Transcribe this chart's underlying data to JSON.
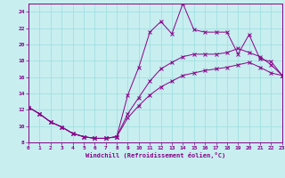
{
  "xlabel": "Windchill (Refroidissement éolien,°C)",
  "bg_color": "#c8eef0",
  "line_color": "#880088",
  "grid_color": "#99dddd",
  "ylim": [
    8,
    25
  ],
  "xlim": [
    0,
    23
  ],
  "yticks": [
    8,
    10,
    12,
    14,
    16,
    18,
    20,
    22,
    24
  ],
  "xticks": [
    0,
    1,
    2,
    3,
    4,
    5,
    6,
    7,
    8,
    9,
    10,
    11,
    12,
    13,
    14,
    15,
    16,
    17,
    18,
    19,
    20,
    21,
    22,
    23
  ],
  "line1_y": [
    12.3,
    11.5,
    10.5,
    9.9,
    9.1,
    8.7,
    8.5,
    8.5,
    8.7,
    13.8,
    17.2,
    21.5,
    22.8,
    21.3,
    25.0,
    21.8,
    21.5,
    21.5,
    21.5,
    18.8,
    21.2,
    18.2,
    17.9,
    16.2
  ],
  "line2_y": [
    12.3,
    11.5,
    10.5,
    9.9,
    9.1,
    8.7,
    8.5,
    8.5,
    8.7,
    11.5,
    13.5,
    15.5,
    17.0,
    17.8,
    18.5,
    18.8,
    18.8,
    18.8,
    19.0,
    19.5,
    19.0,
    18.5,
    17.5,
    16.2
  ],
  "line3_y": [
    12.3,
    11.5,
    10.5,
    9.9,
    9.1,
    8.7,
    8.5,
    8.5,
    8.7,
    11.0,
    12.5,
    13.8,
    14.8,
    15.5,
    16.2,
    16.5,
    16.8,
    17.0,
    17.2,
    17.5,
    17.8,
    17.2,
    16.5,
    16.2
  ]
}
